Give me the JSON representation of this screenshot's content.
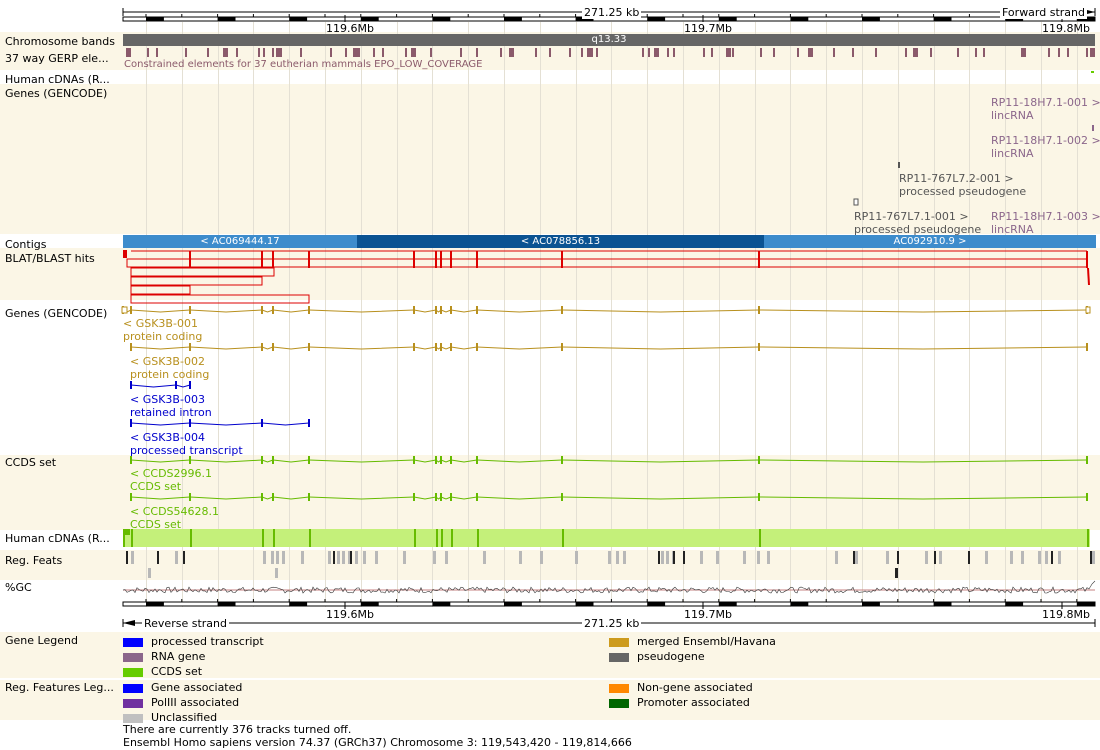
{
  "scale": {
    "top_span": "271.25 kb",
    "top_strand": "Forward strand",
    "bottom_span": "271.25 kb",
    "bottom_strand": "Reverse strand",
    "ticks": [
      "119.6Mb",
      "119.7Mb",
      "119.8Mb"
    ]
  },
  "tracks": {
    "chromosome_bands": "Chromosome bands",
    "band_name": "q13.33",
    "gerp": "37 way GERP ele...",
    "gerp_note": "Constrained elements for 37 eutherian mammals EPO_LOW_COVERAGE",
    "human_cdnas_top": "Human cDNAs (R...",
    "genes_top": "Genes (GENCODE)",
    "contigs": "Contigs",
    "blat": "BLAT/BLAST hits",
    "genes_bottom": "Genes (GENCODE)",
    "ccds": "CCDS set",
    "human_cdnas_bottom": "Human cDNAs (R...",
    "reg_feats": "Reg. Feats",
    "gc": "%GC",
    "gene_legend": "Gene Legend",
    "reg_legend": "Reg. Features Leg..."
  },
  "forward_genes": [
    {
      "name": "RP11-18H7.1-001 >",
      "biotype": "lincRNA"
    },
    {
      "name": "RP11-18H7.1-002 >",
      "biotype": "lincRNA"
    },
    {
      "name": "RP11-767L7.2-001 >",
      "biotype": "processed pseudogene"
    },
    {
      "name": "RP11-767L7.1-001 >",
      "biotype": "processed pseudogene"
    },
    {
      "name": "RP11-18H7.1-003 >",
      "biotype": "lincRNA"
    }
  ],
  "contigs": [
    "< AC069444.17",
    "< AC078856.13",
    "AC092910.9 >"
  ],
  "reverse_genes": [
    {
      "name": "< GSK3B-001",
      "biotype": "protein coding"
    },
    {
      "name": "< GSK3B-002",
      "biotype": "protein coding"
    },
    {
      "name": "< GSK3B-003",
      "biotype": "retained intron"
    },
    {
      "name": "< GSK3B-004",
      "biotype": "processed transcript"
    }
  ],
  "ccds": [
    {
      "name": "< CCDS2996.1",
      "set": "CCDS set"
    },
    {
      "name": "< CCDS54628.1",
      "set": "CCDS set"
    }
  ],
  "gene_legend": [
    {
      "label": "processed transcript",
      "color": "#0000ff"
    },
    {
      "label": "RNA gene",
      "color": "#8b668b"
    },
    {
      "label": "CCDS set",
      "color": "#66cc00"
    },
    {
      "label": "merged Ensembl/Havana",
      "color": "#cd9b1d"
    },
    {
      "label": "pseudogene",
      "color": "#666666"
    }
  ],
  "reg_legend": [
    {
      "label": "Gene associated",
      "color": "#0000ff"
    },
    {
      "label": "PolIII associated",
      "color": "#7030a0"
    },
    {
      "label": "Unclassified",
      "color": "#c0c0c0"
    },
    {
      "label": "Non-gene associated",
      "color": "#ff8800"
    },
    {
      "label": "Promoter associated",
      "color": "#006600"
    }
  ],
  "footer": {
    "tracks_off": "There are currently 376 tracks turned off.",
    "version": "Ensembl Homo sapiens version 74.37 (GRCh37) Chromosome 3: 119,543,420 - 119,814,666"
  },
  "colors": {
    "merged": "#b8901e",
    "processed": "#0000cc",
    "rna": "#8b668b",
    "pseudo": "#555555",
    "ccds": "#66bb00",
    "blat": "#dd0000",
    "contig_light": "#3d8ccc",
    "contig_dark": "#0b5392",
    "cdna": "#c4f07a",
    "band": "#666666"
  }
}
